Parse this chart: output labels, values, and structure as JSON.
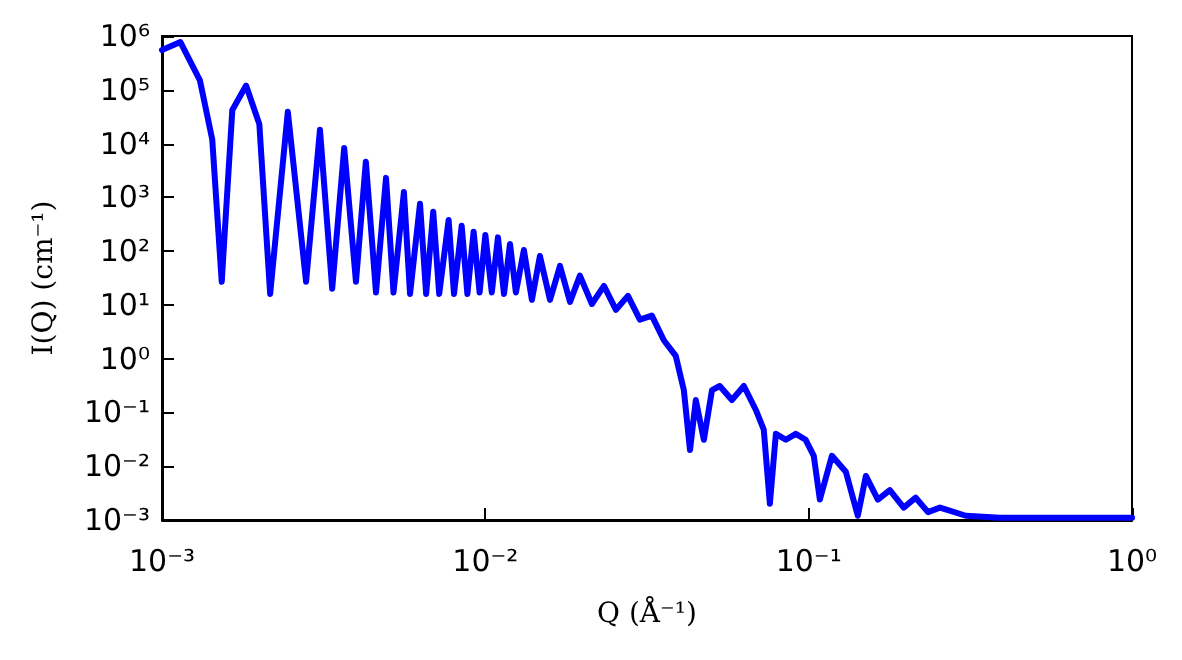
{
  "chart_data": {
    "type": "line",
    "xlabel": "Q (Å⁻¹)",
    "ylabel": "I(Q) (cm⁻¹)",
    "log": "xy",
    "grid": false,
    "marker": "none",
    "line_style": "solid",
    "xlim": [
      0.001,
      1
    ],
    "ylim": [
      0.001,
      1000000
    ],
    "xticks": [
      {
        "value": 0.001,
        "label": "10⁻³"
      },
      {
        "value": 0.01,
        "label": "10⁻²"
      },
      {
        "value": 0.1,
        "label": "10⁻¹"
      },
      {
        "value": 1,
        "label": "10⁰"
      }
    ],
    "yticks": [
      {
        "value": 0.001,
        "label": "10⁻³"
      },
      {
        "value": 0.01,
        "label": "10⁻²"
      },
      {
        "value": 0.1,
        "label": "10⁻¹"
      },
      {
        "value": 1,
        "label": "10⁰"
      },
      {
        "value": 10,
        "label": "10¹"
      },
      {
        "value": 100,
        "label": "10²"
      },
      {
        "value": 1000,
        "label": "10³"
      },
      {
        "value": 10000,
        "label": "10⁴"
      },
      {
        "value": 100000,
        "label": "10⁵"
      },
      {
        "value": 1000000,
        "label": "10⁶"
      }
    ],
    "series": [
      {
        "color": "#0000ff",
        "x": [
          0.001,
          0.00114,
          0.00131,
          0.00143,
          0.00153,
          0.00165,
          0.00182,
          0.002,
          0.00216,
          0.00245,
          0.00279,
          0.00308,
          0.00336,
          0.00366,
          0.00398,
          0.00427,
          0.00459,
          0.00493,
          0.0052,
          0.0056,
          0.00585,
          0.00628,
          0.00656,
          0.0069,
          0.0072,
          0.0077,
          0.008,
          0.00845,
          0.0088,
          0.0092,
          0.0096,
          0.01,
          0.01047,
          0.01094,
          0.01142,
          0.01192,
          0.01243,
          0.01316,
          0.01393,
          0.01475,
          0.01585,
          0.01702,
          0.01828,
          0.01961,
          0.02136,
          0.02327,
          0.02535,
          0.02761,
          0.03006,
          0.03273,
          0.03565,
          0.0388,
          0.04111,
          0.04295,
          0.04477,
          0.04742,
          0.05023,
          0.05309,
          0.05788,
          0.06304,
          0.06871,
          0.07262,
          0.07586,
          0.07918,
          0.085,
          0.0912,
          0.0979,
          0.1037,
          0.1083,
          0.118,
          0.1303,
          0.1419,
          0.1503,
          0.1637,
          0.1782,
          0.1968,
          0.2143,
          0.2339,
          0.2547,
          0.3062,
          0.39,
          0.6,
          1
        ],
        "values": [
          550000,
          770000,
          150000,
          12000,
          27,
          42000,
          120000,
          23000,
          16,
          39000,
          27,
          18000,
          20,
          8300,
          27,
          4600,
          17,
          2300,
          17,
          1260,
          16,
          760,
          16,
          540,
          16,
          380,
          16,
          295,
          16,
          230,
          17,
          200,
          17,
          180,
          16,
          136,
          17,
          105,
          12.4,
          81,
          12.4,
          53,
          11.4,
          35,
          10.4,
          22.5,
          8.1,
          14.7,
          5.3,
          6.3,
          2.2,
          1.13,
          0.26,
          0.02,
          0.17,
          0.031,
          0.26,
          0.31,
          0.17,
          0.31,
          0.11,
          0.048,
          0.002,
          0.04,
          0.031,
          0.04,
          0.031,
          0.0156,
          0.0024,
          0.0156,
          0.0079,
          0.0012,
          0.0066,
          0.0024,
          0.0036,
          0.0017,
          0.0026,
          0.0014,
          0.0017,
          0.0012,
          0.0011,
          0.0011,
          0.0011
        ]
      }
    ]
  }
}
